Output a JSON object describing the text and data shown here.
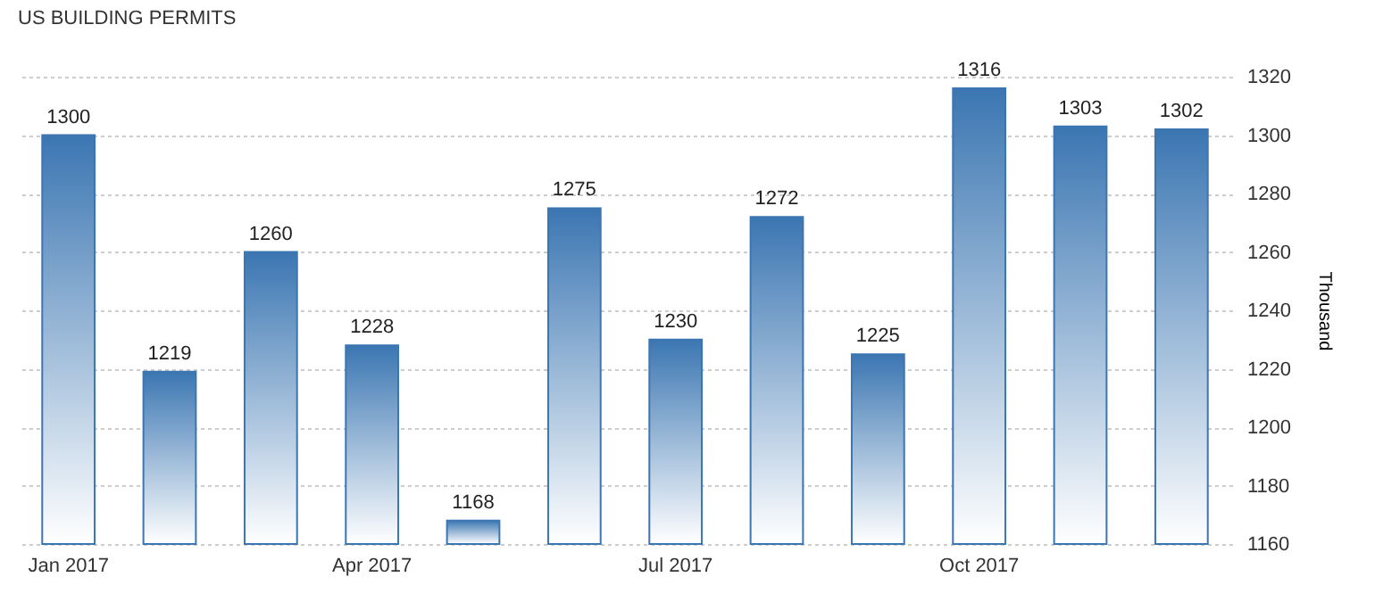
{
  "chart_data": {
    "type": "bar",
    "title": "US BUILDING PERMITS",
    "ylabel": "Thousand",
    "categories": [
      "Jan 2017",
      null,
      null,
      "Apr 2017",
      null,
      null,
      "Jul 2017",
      null,
      null,
      "Oct 2017",
      null,
      null
    ],
    "values": [
      1300,
      1219,
      1260,
      1228,
      1168,
      1275,
      1230,
      1272,
      1225,
      1316,
      1303,
      1302
    ],
    "color": "#3b76b2",
    "ylim": [
      1160,
      1320
    ],
    "yticks": [
      1160,
      1180,
      1200,
      1220,
      1240,
      1260,
      1280,
      1300,
      1320
    ],
    "grid": "y",
    "data_labels": true
  }
}
